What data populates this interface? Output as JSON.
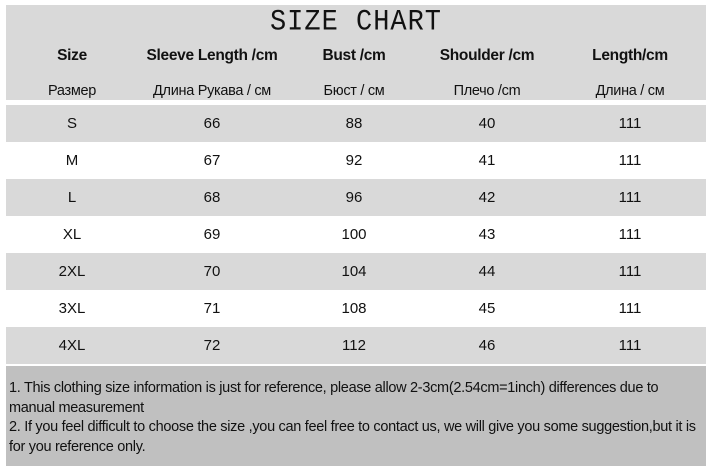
{
  "title": "SIZE CHART",
  "headers": [
    "Size",
    "Sleeve Length /cm",
    "Bust /cm",
    "Shoulder /cm",
    "Length/cm"
  ],
  "headers_ru": [
    "Размер",
    "Длина Рукава / см",
    "Бюст / см",
    "Плечо /cm",
    "Длина / см"
  ],
  "rows": [
    [
      "S",
      "66",
      "88",
      "40",
      "111"
    ],
    [
      "M",
      "67",
      "92",
      "41",
      "111"
    ],
    [
      "L",
      "68",
      "96",
      "42",
      "111"
    ],
    [
      "XL",
      "69",
      "100",
      "43",
      "111"
    ],
    [
      "2XL",
      "70",
      "104",
      "44",
      "111"
    ],
    [
      "3XL",
      "71",
      "108",
      "45",
      "111"
    ],
    [
      "4XL",
      "72",
      "112",
      "46",
      "111"
    ]
  ],
  "notes": [
    "1. This clothing size information is just for reference, please allow 2-3cm(2.54cm=1inch) differences due to manual measurement",
    "2. If you feel difficult to choose the size ,you can feel free to contact us, we will give you some suggestion,but it is for you reference only."
  ],
  "colors": {
    "header_bg": "#d9d9d9",
    "stripe_bg": "#d9d9d9",
    "notes_bg": "#c0c0c0"
  }
}
